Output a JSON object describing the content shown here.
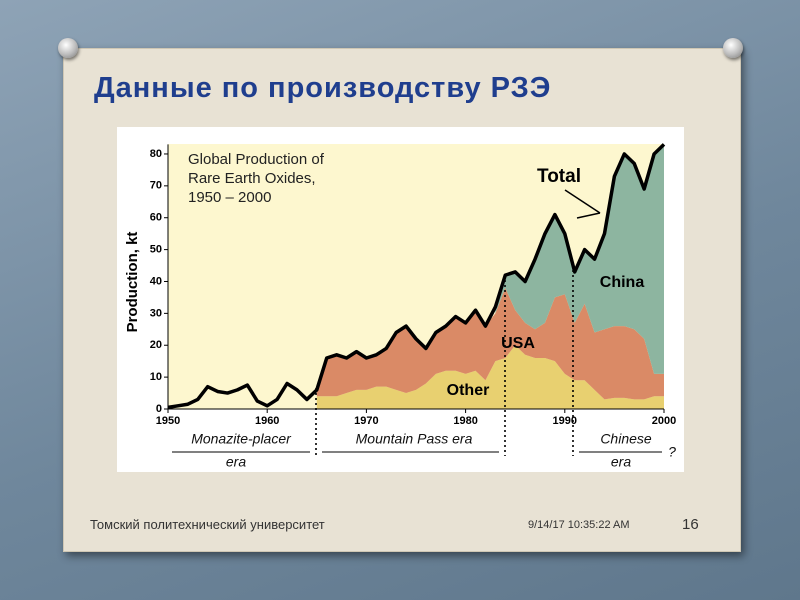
{
  "slide": {
    "title": "Данные по производству РЗЭ",
    "footer": {
      "organization": "Томский политехнический университет",
      "date": "9/14/17 10:35:22 AM",
      "page": "16"
    }
  },
  "chart_data": {
    "type": "area",
    "stacked": true,
    "title_lines": [
      "Global Production of",
      "Rare Earth Oxides,",
      "1950 – 2000"
    ],
    "y_label": "Production, kt",
    "x": [
      1950,
      1951,
      1952,
      1953,
      1954,
      1955,
      1956,
      1957,
      1958,
      1959,
      1960,
      1961,
      1962,
      1963,
      1964,
      1965,
      1966,
      1967,
      1968,
      1969,
      1970,
      1971,
      1972,
      1973,
      1974,
      1975,
      1976,
      1977,
      1978,
      1979,
      1980,
      1981,
      1982,
      1983,
      1984,
      1985,
      1986,
      1987,
      1988,
      1989,
      1990,
      1991,
      1992,
      1993,
      1994,
      1995,
      1996,
      1997,
      1998,
      1999,
      2000
    ],
    "series": [
      {
        "name": "Other",
        "color": "#e8d070",
        "values": [
          null,
          null,
          null,
          null,
          null,
          null,
          null,
          null,
          null,
          null,
          null,
          null,
          null,
          null,
          null,
          4,
          4,
          4,
          5,
          6,
          6,
          7,
          7,
          6,
          5,
          6,
          8,
          11,
          12,
          12,
          11,
          12,
          9,
          15,
          16,
          20,
          17,
          16,
          16,
          15,
          11,
          9,
          9,
          6,
          3,
          3.5,
          3.5,
          3,
          3,
          4,
          4
        ]
      },
      {
        "name": "USA",
        "color": "#da8a66",
        "values": [
          null,
          null,
          null,
          null,
          null,
          null,
          null,
          null,
          null,
          null,
          null,
          null,
          null,
          null,
          null,
          2,
          12,
          13,
          11,
          12,
          10,
          10,
          12,
          18,
          21,
          16,
          11,
          13,
          14,
          17,
          16,
          19,
          17,
          15,
          22,
          11,
          10,
          9,
          11,
          20,
          25,
          18,
          24,
          18,
          22,
          22.5,
          22.5,
          22,
          19,
          7,
          7
        ]
      },
      {
        "name": "China",
        "color": "#8db5a0",
        "values": [
          null,
          null,
          null,
          null,
          null,
          null,
          null,
          null,
          null,
          null,
          null,
          null,
          null,
          null,
          null,
          null,
          null,
          null,
          null,
          null,
          null,
          null,
          null,
          null,
          null,
          null,
          null,
          null,
          null,
          null,
          null,
          null,
          null,
          2,
          4,
          12,
          13,
          22,
          28,
          26,
          19,
          16,
          17,
          23,
          30,
          47,
          54,
          52,
          47,
          69,
          72
        ]
      },
      {
        "name": "Total",
        "color": "#000000",
        "type": "line",
        "values": [
          0.5,
          1,
          1.5,
          3,
          7,
          5.5,
          5,
          6,
          7.5,
          2.5,
          1,
          3,
          8,
          6,
          3,
          6,
          16,
          17,
          16,
          18,
          16,
          17,
          19,
          24,
          26,
          22,
          19,
          24,
          26,
          29,
          27,
          31,
          26,
          32,
          42,
          43,
          40,
          47,
          55,
          61,
          55,
          43,
          50,
          47,
          55,
          73,
          80,
          77,
          69,
          80,
          83
        ]
      }
    ],
    "xlim": [
      1950,
      2000
    ],
    "xticks": [
      1950,
      1960,
      1970,
      1980,
      1990,
      2000
    ],
    "ylim": [
      0,
      83
    ],
    "yticks": [
      0,
      10,
      20,
      30,
      40,
      50,
      60,
      70,
      80
    ],
    "eras": [
      [
        "Monazite-placer",
        "era"
      ],
      [
        "Mountain Pass era"
      ],
      [
        "Chinese",
        "era",
        "?"
      ]
    ]
  }
}
